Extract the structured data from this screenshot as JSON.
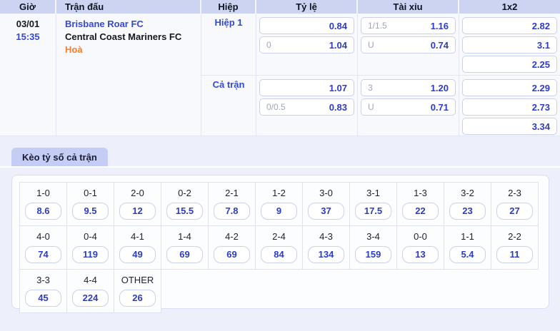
{
  "odds_table": {
    "headers": [
      "Giờ",
      "Trận đấu",
      "Hiệp",
      "Tỷ lệ",
      "Tài xỉu",
      "1x2"
    ],
    "match": {
      "date": "03/01",
      "time": "15:35",
      "home_team": "Brisbane Roar FC",
      "away_team": "Central Coast Mariners FC",
      "result": "Hoà"
    },
    "sections": [
      {
        "label": "Hiệp 1",
        "ty_le": [
          {
            "hdp": "",
            "odds": "0.84"
          },
          {
            "hdp": "0",
            "odds": "1.04"
          }
        ],
        "tai_xiu": [
          {
            "hdp": "1/1.5",
            "odds": "1.16"
          },
          {
            "hdp": "U",
            "odds": "0.74"
          }
        ],
        "one_x_two": [
          "2.82",
          "3.1",
          "2.25"
        ]
      },
      {
        "label": "Cả trận",
        "ty_le": [
          {
            "hdp": "",
            "odds": "1.07"
          },
          {
            "hdp": "0/0.5",
            "odds": "0.83"
          }
        ],
        "tai_xiu": [
          {
            "hdp": "3",
            "odds": "1.20"
          },
          {
            "hdp": "U",
            "odds": "0.71"
          }
        ],
        "one_x_two": [
          "2.29",
          "2.73",
          "3.34"
        ]
      }
    ]
  },
  "correct_score": {
    "tab_label": "Kèo tỷ số cả trận",
    "rows": [
      [
        {
          "score": "1-0",
          "odds": "8.6"
        },
        {
          "score": "0-1",
          "odds": "9.5"
        },
        {
          "score": "2-0",
          "odds": "12"
        },
        {
          "score": "0-2",
          "odds": "15.5"
        },
        {
          "score": "2-1",
          "odds": "7.8"
        },
        {
          "score": "1-2",
          "odds": "9"
        },
        {
          "score": "3-0",
          "odds": "37"
        },
        {
          "score": "3-1",
          "odds": "17.5"
        },
        {
          "score": "1-3",
          "odds": "22"
        },
        {
          "score": "3-2",
          "odds": "23"
        },
        {
          "score": "2-3",
          "odds": "27"
        }
      ],
      [
        {
          "score": "4-0",
          "odds": "74"
        },
        {
          "score": "0-4",
          "odds": "119"
        },
        {
          "score": "4-1",
          "odds": "49"
        },
        {
          "score": "1-4",
          "odds": "69"
        },
        {
          "score": "4-2",
          "odds": "69"
        },
        {
          "score": "2-4",
          "odds": "84"
        },
        {
          "score": "4-3",
          "odds": "134"
        },
        {
          "score": "3-4",
          "odds": "159"
        },
        {
          "score": "0-0",
          "odds": "13"
        },
        {
          "score": "1-1",
          "odds": "5.4"
        },
        {
          "score": "2-2",
          "odds": "11"
        }
      ],
      [
        {
          "score": "3-3",
          "odds": "45"
        },
        {
          "score": "4-4",
          "odds": "224"
        },
        {
          "score": "OTHER",
          "odds": "26"
        }
      ]
    ]
  },
  "colors": {
    "page_bg": "#edf0fa",
    "header_bg": "#ccd4f1",
    "tab_bg": "#c5cdf4",
    "odds_blue": "#2c3cc8",
    "link_blue": "#3448d8",
    "result_orange": "#ff7c25"
  }
}
